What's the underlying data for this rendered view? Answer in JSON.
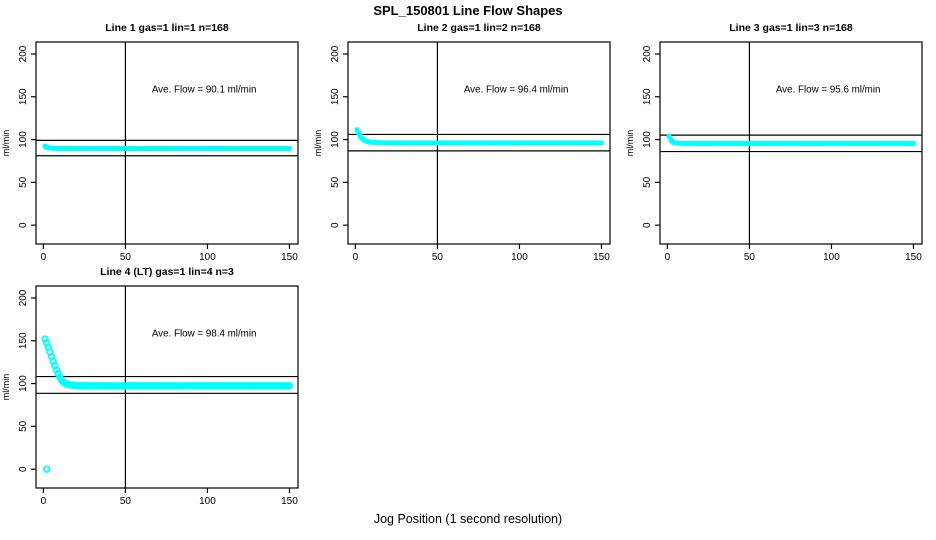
{
  "figure": {
    "title": "SPL_150801  Line Flow Shapes",
    "xlabel": "Jog Position (1 second resolution)",
    "background": "#FFFFFF"
  },
  "chart_data": {
    "type": "scatter",
    "title": "SPL_150801  Line Flow Shapes",
    "xlabel": "Jog Position (1 second resolution)",
    "ylabel": "ml/min",
    "point_color": "#00FFFF",
    "line_color": "#000000",
    "grid": false,
    "x_ticks": [
      0,
      50,
      100,
      150
    ],
    "y_ticks": [
      0,
      50,
      100,
      150,
      200
    ],
    "xlim": [
      -4.5,
      155.2
    ],
    "ylim": [
      -22,
      214
    ],
    "vline_x": 50,
    "annotation_pos": [
      98,
      155
    ],
    "x_point_range": [
      1,
      150
    ],
    "panels": [
      {
        "title": "Line 1 gas=1 lin=1 n=168",
        "annotation": "Ave. Flow =  90.1  ml/min",
        "ave_flow": 90.1,
        "n": 168,
        "hlines": [
          99.1,
          81.1
        ],
        "marker": "filled-square",
        "anchors": [
          [
            1,
            92.3
          ],
          [
            2,
            91.2
          ],
          [
            3,
            90.4
          ],
          [
            5,
            89.9
          ],
          [
            8,
            89.7
          ],
          [
            15,
            89.6
          ],
          [
            30,
            89.7
          ],
          [
            60,
            89.5
          ],
          [
            90,
            89.7
          ],
          [
            120,
            89.6
          ],
          [
            150,
            89.6
          ]
        ],
        "extra_points": []
      },
      {
        "title": "Line 2 gas=1 lin=2 n=168",
        "annotation": "Ave. Flow =  96.4  ml/min",
        "ave_flow": 96.4,
        "n": 168,
        "hlines": [
          106.0,
          86.8
        ],
        "marker": "filled-square",
        "anchors": [
          [
            1,
            111.5
          ],
          [
            2,
            107.5
          ],
          [
            3,
            104
          ],
          [
            4,
            101.5
          ],
          [
            5,
            99.8
          ],
          [
            6,
            98.7
          ],
          [
            7,
            98
          ],
          [
            8,
            97.4
          ],
          [
            10,
            96.9
          ],
          [
            13,
            96.5
          ],
          [
            17,
            96.3
          ],
          [
            25,
            96.1
          ],
          [
            50,
            96.2
          ],
          [
            80,
            96.0
          ],
          [
            115,
            96.2
          ],
          [
            150,
            96.1
          ]
        ],
        "extra_points": []
      },
      {
        "title": "Line 3 gas=1 lin=3 n=168",
        "annotation": "Ave. Flow =  95.6  ml/min",
        "ave_flow": 95.6,
        "n": 168,
        "hlines": [
          105.2,
          86.0
        ],
        "marker": "filled-square",
        "anchors": [
          [
            1,
            104
          ],
          [
            2,
            100.2
          ],
          [
            3,
            98
          ],
          [
            4,
            96.7
          ],
          [
            5,
            96.1
          ],
          [
            7,
            95.7
          ],
          [
            10,
            95.5
          ],
          [
            20,
            95.4
          ],
          [
            50,
            95.5
          ],
          [
            90,
            95.4
          ],
          [
            120,
            95.5
          ],
          [
            150,
            95.4
          ]
        ],
        "extra_points": []
      },
      {
        "title": "Line 4 (LT) gas=1 lin=4 n=3",
        "annotation": "Ave. Flow =  98.4  ml/min",
        "ave_flow": 98.4,
        "n": 3,
        "hlines": [
          108.2,
          88.6
        ],
        "marker": "open-circle",
        "anchors": [
          [
            1,
            152
          ],
          [
            2,
            147.5
          ],
          [
            3,
            142.5
          ],
          [
            4,
            137
          ],
          [
            5,
            131.5
          ],
          [
            6,
            126
          ],
          [
            7,
            121
          ],
          [
            8,
            116
          ],
          [
            9,
            111.5
          ],
          [
            10,
            107.5
          ],
          [
            11,
            104.5
          ],
          [
            12,
            102.3
          ],
          [
            13,
            100.8
          ],
          [
            14,
            99.8
          ],
          [
            15,
            99.1
          ],
          [
            16,
            98.6
          ],
          [
            18,
            98
          ],
          [
            20,
            97.7
          ],
          [
            23,
            97.5
          ],
          [
            27,
            97.3
          ],
          [
            35,
            97.4
          ],
          [
            45,
            97.2
          ],
          [
            55,
            97.5
          ],
          [
            65,
            97.3
          ],
          [
            75,
            97.4
          ],
          [
            85,
            97.2
          ],
          [
            95,
            97.5
          ],
          [
            105,
            97.3
          ],
          [
            115,
            97.4
          ],
          [
            125,
            97.3
          ],
          [
            135,
            97.4
          ],
          [
            150,
            97.3
          ]
        ],
        "extra_points": [
          [
            2,
            0
          ]
        ]
      }
    ]
  }
}
